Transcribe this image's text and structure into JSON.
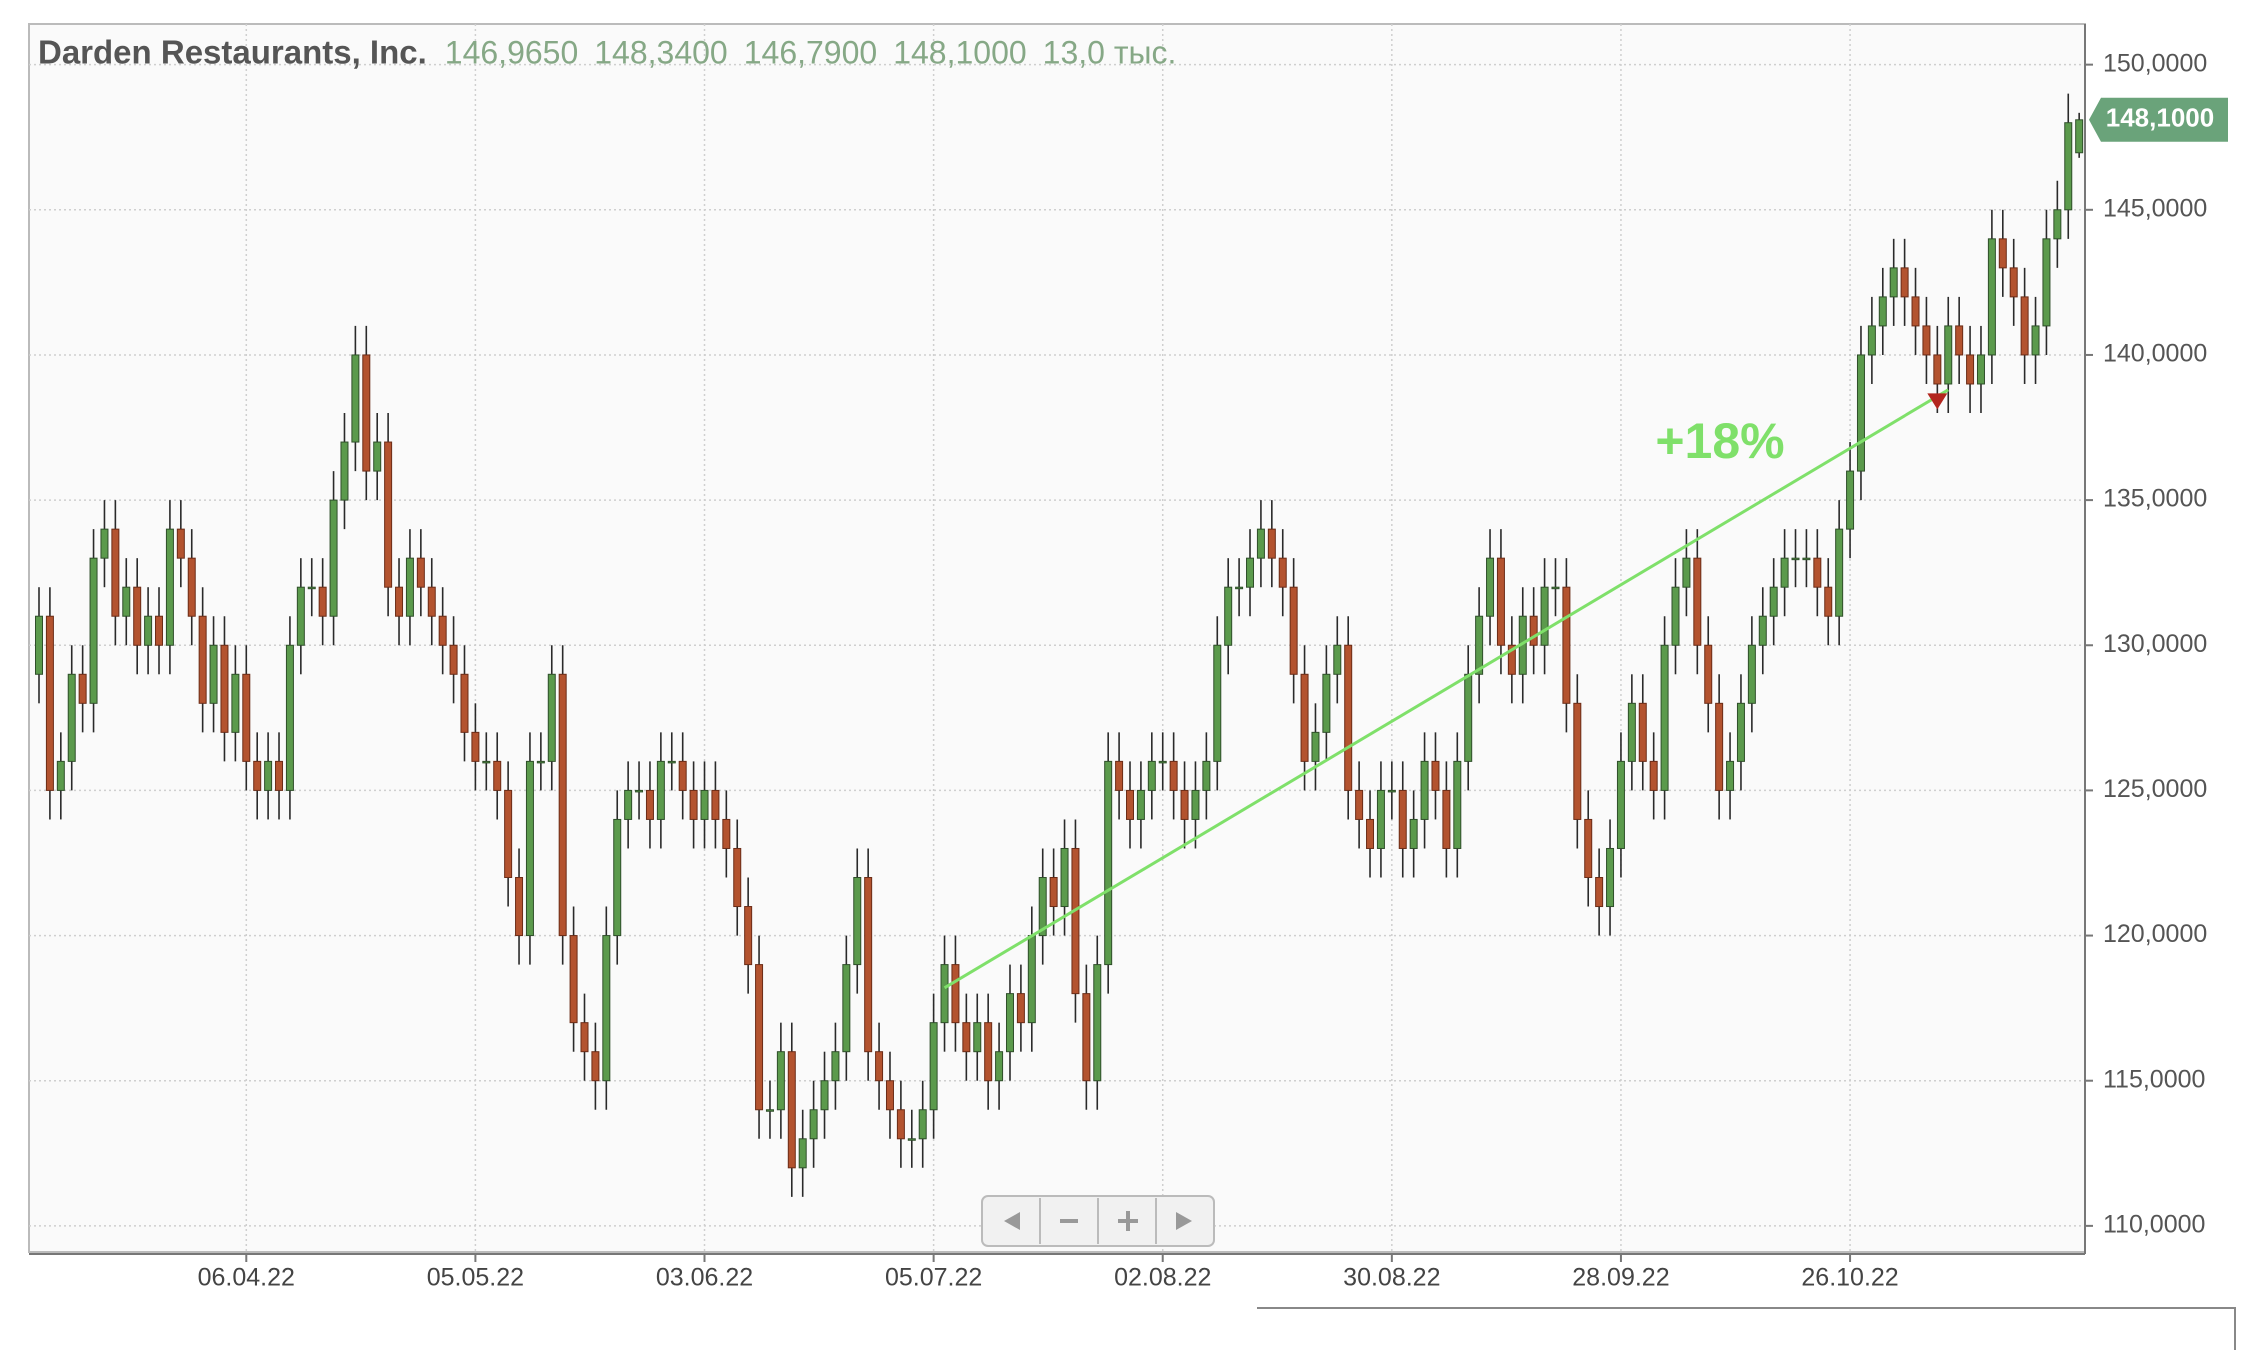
{
  "chart_data": {
    "type": "candlestick",
    "title": "Darden Restaurants, Inc.",
    "header_values": [
      "146,9650",
      "148,3400",
      "146,7900",
      "148,1000",
      "13,0 тыс."
    ],
    "last_price_label": "148,1000",
    "annotation": "+18%",
    "up_color": "#5b9a4c",
    "down_color": "#b3532f",
    "trend_color": "#7fe06a",
    "grid": true,
    "ylim": [
      109.1,
      151.4
    ],
    "yticks": [
      {
        "value": 110,
        "label": "110,0000"
      },
      {
        "value": 115,
        "label": "115,0000"
      },
      {
        "value": 120,
        "label": "120,0000"
      },
      {
        "value": 125,
        "label": "125,0000"
      },
      {
        "value": 130,
        "label": "130,0000"
      },
      {
        "value": 135,
        "label": "135,0000"
      },
      {
        "value": 140,
        "label": "140,0000"
      },
      {
        "value": 145,
        "label": "145,0000"
      },
      {
        "value": 150,
        "label": "150,0000"
      }
    ],
    "trendline": {
      "x": [
        83,
        175
      ],
      "y": [
        118.2,
        138.8
      ]
    },
    "marker": {
      "x": 174,
      "y": 138.4
    },
    "categories": [
      null,
      null,
      null,
      null,
      null,
      null,
      null,
      null,
      null,
      null,
      null,
      null,
      null,
      null,
      null,
      null,
      null,
      null,
      null,
      "06.04.22",
      null,
      null,
      null,
      null,
      null,
      null,
      null,
      null,
      null,
      null,
      null,
      null,
      null,
      null,
      null,
      null,
      null,
      null,
      null,
      null,
      "05.05.22",
      null,
      null,
      null,
      null,
      null,
      null,
      null,
      null,
      null,
      null,
      null,
      null,
      null,
      null,
      null,
      null,
      null,
      null,
      null,
      null,
      "03.06.22",
      null,
      null,
      null,
      null,
      null,
      null,
      null,
      null,
      null,
      null,
      null,
      null,
      null,
      null,
      null,
      null,
      null,
      null,
      null,
      null,
      "05.07.22",
      null,
      null,
      null,
      null,
      null,
      null,
      null,
      null,
      null,
      null,
      null,
      null,
      null,
      null,
      null,
      null,
      null,
      null,
      null,
      null,
      "02.08.22",
      null,
      null,
      null,
      null,
      null,
      null,
      null,
      null,
      null,
      null,
      null,
      null,
      null,
      null,
      null,
      null,
      null,
      null,
      null,
      null,
      "30.08.22",
      null,
      null,
      null,
      null,
      null,
      null,
      null,
      null,
      null,
      null,
      null,
      null,
      null,
      null,
      null,
      null,
      null,
      null,
      null,
      null,
      "28.09.22",
      null,
      null,
      null,
      null,
      null,
      null,
      null,
      null,
      null,
      null,
      null,
      null,
      null,
      null,
      null,
      null,
      null,
      null,
      null,
      null,
      "26.10.22",
      null,
      null,
      null,
      null,
      null,
      null,
      null,
      null,
      null,
      null,
      null,
      null,
      null,
      null,
      null,
      null,
      null,
      null,
      null,
      null,
      null
    ],
    "open": [
      129,
      131,
      125,
      126,
      129,
      128,
      133,
      134,
      131,
      132,
      130,
      131,
      130,
      134,
      133,
      131,
      128,
      130,
      127,
      129,
      126,
      125,
      126,
      125,
      130,
      132,
      132,
      131,
      135,
      137,
      140,
      136,
      137,
      132,
      131,
      133,
      132,
      131,
      130,
      129,
      127,
      126,
      126,
      125,
      122,
      120,
      126,
      126,
      129,
      120,
      117,
      116,
      115,
      120,
      124,
      125,
      125,
      124,
      126,
      126,
      125,
      124,
      125,
      124,
      123,
      121,
      119,
      114,
      114,
      116,
      112,
      113,
      114,
      115,
      116,
      119,
      122,
      116,
      115,
      114,
      113,
      113,
      114,
      117,
      119,
      117,
      116,
      117,
      115,
      116,
      118,
      117,
      120,
      122,
      121,
      123,
      118,
      115,
      119,
      126,
      125,
      124,
      125,
      126,
      126,
      125,
      124,
      125,
      126,
      130,
      132,
      132,
      133,
      134,
      133,
      132,
      129,
      126,
      127,
      129,
      130,
      125,
      124,
      123,
      125,
      125,
      123,
      124,
      126,
      125,
      123,
      126,
      129,
      131,
      133,
      130,
      129,
      131,
      130,
      132,
      132,
      128,
      124,
      122,
      121,
      123,
      126,
      128,
      126,
      125,
      130,
      132,
      133,
      130,
      128,
      125,
      126,
      128,
      130,
      131,
      132,
      133,
      133,
      133,
      132,
      131,
      134,
      136,
      140,
      141,
      142,
      143,
      142,
      141,
      140,
      139,
      141,
      140,
      139,
      140,
      144,
      143,
      142,
      140,
      141,
      144,
      145,
      146.965
    ],
    "high": [
      132,
      132,
      127,
      130,
      130,
      134,
      135,
      135,
      133,
      133,
      132,
      132,
      135,
      135,
      134,
      132,
      131,
      131,
      130,
      130,
      127,
      127,
      127,
      131,
      133,
      133,
      133,
      136,
      138,
      141,
      141,
      138,
      138,
      133,
      134,
      134,
      133,
      132,
      131,
      130,
      128,
      127,
      127,
      126,
      123,
      127,
      127,
      130,
      130,
      121,
      118,
      117,
      121,
      125,
      126,
      126,
      126,
      127,
      127,
      127,
      126,
      126,
      126,
      125,
      124,
      122,
      120,
      115,
      117,
      117,
      114,
      115,
      116,
      117,
      120,
      123,
      123,
      117,
      116,
      115,
      114,
      115,
      118,
      120,
      120,
      118,
      118,
      118,
      117,
      119,
      119,
      121,
      123,
      123,
      124,
      124,
      119,
      120,
      127,
      127,
      126,
      126,
      127,
      127,
      127,
      126,
      126,
      127,
      131,
      133,
      133,
      134,
      135,
      135,
      134,
      133,
      130,
      128,
      130,
      131,
      131,
      126,
      125,
      126,
      126,
      126,
      125,
      127,
      127,
      126,
      127,
      130,
      132,
      134,
      134,
      131,
      132,
      132,
      133,
      133,
      133,
      129,
      125,
      123,
      124,
      127,
      129,
      129,
      127,
      131,
      133,
      134,
      134,
      131,
      129,
      127,
      129,
      131,
      132,
      133,
      134,
      134,
      134,
      134,
      133,
      135,
      137,
      141,
      142,
      143,
      144,
      144,
      143,
      142,
      141,
      142,
      142,
      141,
      141,
      145,
      145,
      144,
      143,
      142,
      145,
      146,
      149,
      148.34
    ],
    "low": [
      128,
      124,
      124,
      125,
      127,
      127,
      132,
      130,
      130,
      129,
      129,
      129,
      129,
      132,
      130,
      127,
      127,
      126,
      126,
      125,
      124,
      124,
      124,
      124,
      129,
      131,
      130,
      130,
      134,
      136,
      135,
      135,
      131,
      130,
      130,
      131,
      130,
      129,
      128,
      126,
      125,
      125,
      124,
      121,
      119,
      119,
      125,
      125,
      119,
      116,
      115,
      114,
      114,
      119,
      123,
      124,
      123,
      123,
      125,
      124,
      123,
      123,
      123,
      122,
      120,
      118,
      113,
      113,
      113,
      111,
      111,
      112,
      113,
      114,
      115,
      118,
      115,
      114,
      113,
      112,
      112,
      112,
      113,
      116,
      116,
      115,
      115,
      114,
      114,
      115,
      116,
      116,
      119,
      120,
      120,
      117,
      114,
      114,
      118,
      124,
      123,
      123,
      124,
      125,
      124,
      123,
      123,
      124,
      125,
      129,
      131,
      131,
      132,
      132,
      131,
      128,
      125,
      125,
      126,
      128,
      124,
      123,
      122,
      122,
      124,
      122,
      122,
      123,
      124,
      122,
      122,
      125,
      128,
      130,
      129,
      128,
      128,
      129,
      129,
      131,
      127,
      123,
      121,
      120,
      120,
      122,
      125,
      125,
      124,
      124,
      129,
      131,
      129,
      127,
      124,
      124,
      125,
      127,
      129,
      130,
      131,
      132,
      132,
      131,
      130,
      130,
      133,
      135,
      139,
      140,
      141,
      141,
      140,
      139,
      138,
      138,
      139,
      138,
      138,
      139,
      142,
      141,
      139,
      139,
      140,
      143,
      144,
      146.79
    ],
    "close": [
      131,
      125,
      126,
      129,
      128,
      133,
      134,
      131,
      132,
      130,
      131,
      130,
      134,
      133,
      131,
      128,
      130,
      127,
      129,
      126,
      125,
      126,
      125,
      130,
      132,
      132,
      131,
      135,
      137,
      140,
      136,
      137,
      132,
      131,
      133,
      132,
      131,
      130,
      129,
      127,
      126,
      126,
      125,
      122,
      120,
      126,
      126,
      129,
      120,
      117,
      116,
      115,
      120,
      124,
      125,
      125,
      124,
      126,
      126,
      125,
      124,
      125,
      124,
      123,
      121,
      119,
      114,
      114,
      116,
      112,
      113,
      114,
      115,
      116,
      119,
      122,
      116,
      115,
      114,
      113,
      113,
      114,
      117,
      119,
      117,
      116,
      117,
      115,
      116,
      118,
      117,
      120,
      122,
      121,
      123,
      118,
      115,
      119,
      126,
      125,
      124,
      125,
      126,
      126,
      125,
      124,
      125,
      126,
      130,
      132,
      132,
      133,
      134,
      133,
      132,
      129,
      126,
      127,
      129,
      130,
      125,
      124,
      123,
      125,
      125,
      123,
      124,
      126,
      125,
      123,
      126,
      129,
      131,
      133,
      130,
      129,
      131,
      130,
      132,
      132,
      128,
      124,
      122,
      121,
      123,
      126,
      128,
      126,
      125,
      130,
      132,
      133,
      130,
      128,
      125,
      126,
      128,
      130,
      131,
      132,
      133,
      133,
      133,
      132,
      131,
      134,
      136,
      140,
      141,
      142,
      143,
      142,
      141,
      140,
      139,
      141,
      140,
      139,
      140,
      144,
      143,
      142,
      140,
      141,
      144,
      145,
      148,
      148.1
    ]
  }
}
